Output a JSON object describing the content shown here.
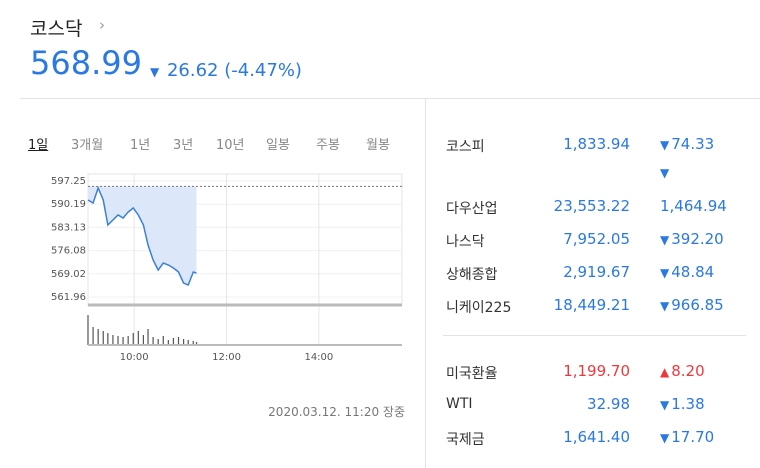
{
  "header": {
    "title": "코스닥",
    "value": "568.99",
    "change": "26.62 (-4.47%)",
    "direction": "down"
  },
  "tabs": [
    "1일",
    "3개월",
    "1년",
    "3년",
    "10년",
    "일봉",
    "주봉",
    "월봉"
  ],
  "active_tab": 0,
  "chart_data": {
    "type": "line",
    "color": "#3b7fd8",
    "fill": "#dce8fa",
    "x": [
      9.0,
      9.11,
      9.22,
      9.33,
      9.43,
      9.54,
      9.65,
      9.76,
      9.87,
      9.98,
      10.09,
      10.2,
      10.3,
      10.41,
      10.52,
      10.63,
      10.74,
      10.85,
      10.96,
      11.07,
      11.17,
      11.28,
      11.35
    ],
    "values": [
      591.47,
      590.56,
      595.12,
      591.47,
      583.86,
      585.39,
      586.91,
      585.99,
      587.82,
      589.04,
      586.91,
      583.86,
      577.78,
      573.21,
      570.17,
      572.3,
      571.69,
      570.78,
      569.56,
      566.21,
      565.61,
      569.56,
      569.25
    ],
    "volume": [
      30,
      18,
      16,
      14,
      12,
      10,
      9,
      8,
      9,
      12,
      14,
      10,
      16,
      8,
      6,
      9,
      5,
      7,
      8,
      6,
      5,
      4,
      3
    ],
    "volume_lim": [
      0,
      35
    ],
    "baseline": 595.61,
    "xlim": [
      9,
      15.8
    ],
    "ylim": [
      561.96,
      597.25
    ],
    "yticks": [
      561.96,
      569.02,
      576.08,
      583.13,
      590.19,
      597.25
    ],
    "xticks": [
      {
        "value": 10,
        "label": "10:00"
      },
      {
        "value": 12,
        "label": "12:00"
      },
      {
        "value": 14,
        "label": "14:00"
      }
    ]
  },
  "timestamp": "2020.03.12. 11:20 장중",
  "indices": [
    {
      "name": "코스피",
      "value": "1,833.94",
      "change": "74.33",
      "direction": "down"
    },
    {
      "name": "다우산업",
      "value": "23,553.22",
      "change": "1,464.94",
      "direction": "down"
    },
    {
      "name": "나스닥",
      "value": "7,952.05",
      "change": "392.20",
      "direction": "down"
    },
    {
      "name": "상해종합",
      "value": "2,919.67",
      "change": "48.84",
      "direction": "down"
    },
    {
      "name": "니케이225",
      "value": "18,449.21",
      "change": "966.85",
      "direction": "down"
    }
  ],
  "commodities": [
    {
      "name": "미국환율",
      "value": "1,199.70",
      "change": "8.20",
      "direction": "up"
    },
    {
      "name": "WTI",
      "value": "32.98",
      "change": "1.38",
      "direction": "down"
    },
    {
      "name": "국제금",
      "value": "1,641.40",
      "change": "17.70",
      "direction": "down"
    }
  ]
}
